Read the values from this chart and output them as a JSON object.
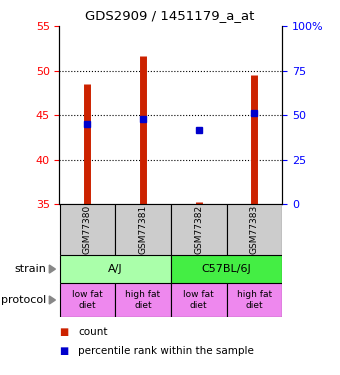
{
  "title": "GDS2909 / 1451179_a_at",
  "samples": [
    "GSM77380",
    "GSM77381",
    "GSM77382",
    "GSM77383"
  ],
  "bar_bottoms": [
    35,
    35,
    35,
    35
  ],
  "bar_tops": [
    48.5,
    51.7,
    35.3,
    49.5
  ],
  "blue_dots": [
    44.0,
    44.6,
    43.3,
    45.3
  ],
  "ylim": [
    35,
    55
  ],
  "yticks_left": [
    35,
    40,
    45,
    50,
    55
  ],
  "yticks_right_labels": [
    "0",
    "25",
    "50",
    "75",
    "100%"
  ],
  "yticks_right_vals": [
    0,
    25,
    50,
    75,
    100
  ],
  "bar_color": "#cc2200",
  "dot_color": "#0000cc",
  "strain_labels": [
    "A/J",
    "C57BL/6J"
  ],
  "strain_colors": [
    "#aaffaa",
    "#44ee44"
  ],
  "protocol_labels": [
    "low fat\ndiet",
    "high fat\ndiet",
    "low fat\ndiet",
    "high fat\ndiet"
  ],
  "protocol_color": "#ee88ee",
  "sample_bg_color": "#cccccc",
  "legend_count_color": "#cc2200",
  "legend_dot_color": "#0000cc"
}
